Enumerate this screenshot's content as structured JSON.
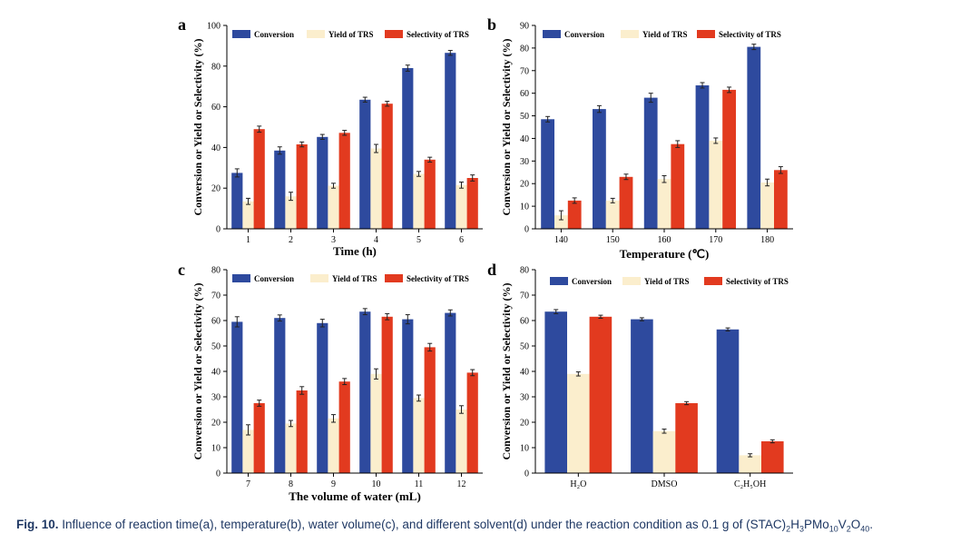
{
  "colors": {
    "conversion": "#2e4a9e",
    "yield": "#fbeecd",
    "selectivity": "#e23a1f",
    "axis": "#000000",
    "caption": "#1f3864"
  },
  "chart_data": [
    {
      "panel": "a",
      "type": "bar",
      "xlabel": "Time (h)",
      "ylabel": "Conversion or Yield or Selectivity (%)",
      "categories": [
        "1",
        "2",
        "3",
        "4",
        "5",
        "6"
      ],
      "ylim": [
        0,
        100
      ],
      "yticks": [
        0,
        20,
        40,
        60,
        80,
        100
      ],
      "legend": [
        "Conversion",
        "Yield of TRS",
        "Selectivity of TRS"
      ],
      "series": [
        {
          "name": "Conversion",
          "values": [
            27.5,
            38.5,
            45.2,
            63.5,
            79.0,
            86.5
          ],
          "errors": [
            2.0,
            1.8,
            1.2,
            1.2,
            1.5,
            1.2
          ]
        },
        {
          "name": "Yield of TRS",
          "values": [
            13.5,
            16.0,
            21.2,
            39.5,
            27.0,
            21.5
          ],
          "errors": [
            1.5,
            2.0,
            1.2,
            2.0,
            1.2,
            1.5
          ]
        },
        {
          "name": "Selectivity of TRS",
          "values": [
            49.0,
            41.5,
            47.2,
            61.5,
            34.0,
            25.0
          ],
          "errors": [
            1.5,
            1.2,
            1.2,
            1.2,
            1.2,
            1.5
          ]
        }
      ]
    },
    {
      "panel": "b",
      "type": "bar",
      "xlabel": "Temperature (℃)",
      "ylabel": "Conversion or Yield or Selectivity (%)",
      "categories": [
        "140",
        "150",
        "160",
        "170",
        "180"
      ],
      "ylim": [
        0,
        90
      ],
      "yticks": [
        0,
        10,
        20,
        30,
        40,
        50,
        60,
        70,
        80,
        90
      ],
      "legend": [
        "Conversion",
        "Yield of TRS",
        "Selectivity of TRS"
      ],
      "series": [
        {
          "name": "Conversion",
          "values": [
            48.5,
            53.0,
            58.0,
            63.5,
            80.5
          ],
          "errors": [
            1.2,
            1.5,
            2.0,
            1.2,
            1.2
          ]
        },
        {
          "name": "Yield of TRS",
          "values": [
            6.0,
            12.5,
            22.0,
            39.0,
            20.5
          ],
          "errors": [
            2.0,
            1.0,
            1.5,
            1.2,
            1.5
          ]
        },
        {
          "name": "Selectivity of TRS",
          "values": [
            12.5,
            23.0,
            37.5,
            61.5,
            26.0
          ],
          "errors": [
            1.2,
            1.2,
            1.5,
            1.2,
            1.5
          ]
        }
      ]
    },
    {
      "panel": "c",
      "type": "bar",
      "xlabel": "The volume of water (mL)",
      "ylabel": "Conversion or Yield or Selectivity (%)",
      "categories": [
        "7",
        "8",
        "9",
        "10",
        "11",
        "12"
      ],
      "ylim": [
        0,
        80
      ],
      "yticks": [
        0,
        10,
        20,
        30,
        40,
        50,
        60,
        70,
        80
      ],
      "legend": [
        "Conversion",
        "Yield of TRS",
        "Selectivity of TRS"
      ],
      "series": [
        {
          "name": "Conversion",
          "values": [
            59.5,
            61.0,
            59.0,
            63.5,
            60.5,
            63.0
          ],
          "errors": [
            2.0,
            1.2,
            1.5,
            1.2,
            1.8,
            1.2
          ]
        },
        {
          "name": "Yield of TRS",
          "values": [
            17.0,
            19.5,
            21.5,
            39.0,
            29.5,
            25.0
          ],
          "errors": [
            2.0,
            1.2,
            1.5,
            2.0,
            1.2,
            1.5
          ]
        },
        {
          "name": "Selectivity of TRS",
          "values": [
            27.5,
            32.5,
            36.0,
            61.5,
            49.5,
            39.5
          ],
          "errors": [
            1.2,
            1.5,
            1.2,
            1.2,
            1.5,
            1.2
          ]
        }
      ]
    },
    {
      "panel": "d",
      "type": "bar",
      "xlabel": "",
      "ylabel": "Conversion or Yield or Selectivity (%)",
      "categories": [
        "H₂O",
        "DMSO",
        "C₂H₅OH"
      ],
      "ylim": [
        0,
        80
      ],
      "yticks": [
        0,
        10,
        20,
        30,
        40,
        50,
        60,
        70,
        80
      ],
      "legend": [
        "Conversion",
        "Yield of TRS",
        "Selectivity of TRS"
      ],
      "series": [
        {
          "name": "Conversion",
          "values": [
            63.5,
            60.5,
            56.5
          ],
          "errors": [
            0.8,
            0.6,
            0.6
          ]
        },
        {
          "name": "Yield of TRS",
          "values": [
            39.0,
            16.5,
            7.0
          ],
          "errors": [
            0.8,
            0.8,
            0.6
          ]
        },
        {
          "name": "Selectivity of TRS",
          "values": [
            61.5,
            27.5,
            12.5
          ],
          "errors": [
            0.6,
            0.6,
            0.6
          ]
        }
      ]
    }
  ],
  "caption": {
    "label": "Fig. 10.",
    "text": "Influence of reaction time(a), temperature(b), water volume(c), and different solvent(d) under the reaction condition as 0.1 g of (STAC)",
    "formula_parts": [
      "2",
      "H",
      "3",
      "PMo",
      "10",
      "V",
      "2",
      "O",
      "40",
      "."
    ]
  }
}
